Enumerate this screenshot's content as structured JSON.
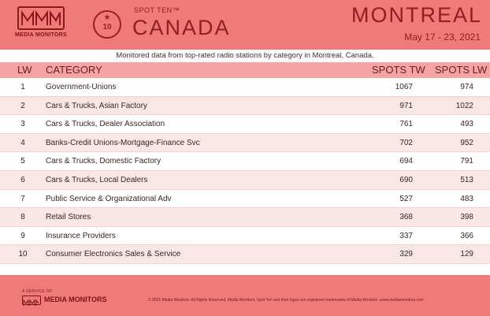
{
  "header": {
    "logo_text": "MEDIA MONITORS",
    "badge_number": "10",
    "badge_icon": "star-icon",
    "brand_top": "SPOT TEN™",
    "brand_country": "CANADA",
    "city": "MONTREAL",
    "dates": "May 17 - 23, 2021"
  },
  "subtitle": "Monitored data from top-rated radio stations by category in Montreal, Canada.",
  "columns": {
    "lw": "LW",
    "category": "CATEGORY",
    "spots_tw": "SPOTS TW",
    "spots_lw": "SPOTS LW"
  },
  "rows": [
    {
      "rank": "1",
      "category": "Government-Unions",
      "spots_tw": "1067",
      "spots_lw": "974"
    },
    {
      "rank": "2",
      "category": "Cars & Trucks, Asian Factory",
      "spots_tw": "971",
      "spots_lw": "1022"
    },
    {
      "rank": "3",
      "category": "Cars & Trucks, Dealer Association",
      "spots_tw": "761",
      "spots_lw": "493"
    },
    {
      "rank": "4",
      "category": "Banks-Credit Unions-Mortgage-Finance Svc",
      "spots_tw": "702",
      "spots_lw": "952"
    },
    {
      "rank": "5",
      "category": "Cars & Trucks, Domestic Factory",
      "spots_tw": "694",
      "spots_lw": "791"
    },
    {
      "rank": "6",
      "category": "Cars & Trucks, Local Dealers",
      "spots_tw": "690",
      "spots_lw": "513"
    },
    {
      "rank": "7",
      "category": "Public Service & Organizational Adv",
      "spots_tw": "527",
      "spots_lw": "483"
    },
    {
      "rank": "8",
      "category": "Retail Stores",
      "spots_tw": "368",
      "spots_lw": "398"
    },
    {
      "rank": "9",
      "category": "Insurance Providers",
      "spots_tw": "337",
      "spots_lw": "366"
    },
    {
      "rank": "10",
      "category": "Consumer Electronics Sales & Service",
      "spots_tw": "329",
      "spots_lw": "129"
    }
  ],
  "footer": {
    "service_text": "A SERVICE OF",
    "brand": "MEDIA MONITORS",
    "copyright": "© 2021 Media Monitors. All Rights Reserved. Media Monitors, Spot Ten and their logos are registered trademarks of Media Monitors. www.mediamonitors.com"
  },
  "colors": {
    "header_bg": "#f07a7a",
    "header_row_bg": "#f5a3a3",
    "alt_row_bg": "#fbe6e6",
    "brand_text": "#8e2020"
  }
}
